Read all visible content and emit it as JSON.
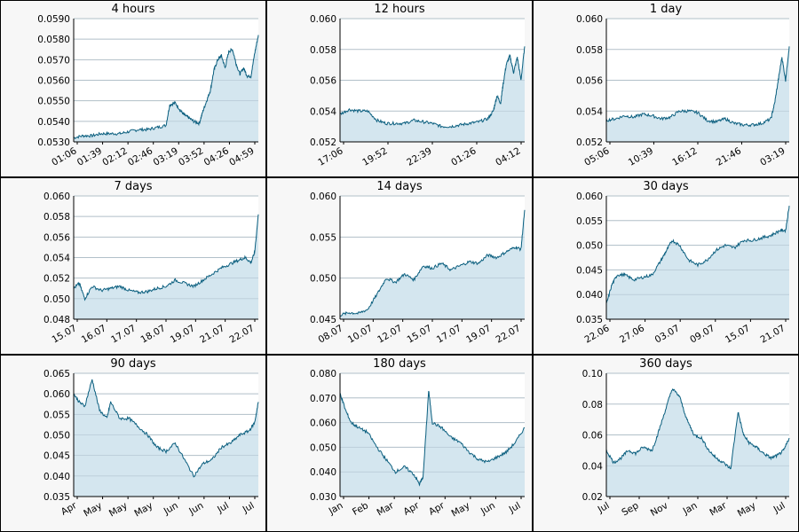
{
  "chart_data": [
    {
      "type": "area",
      "title": "4 hours",
      "ylim": [
        0.053,
        0.059
      ],
      "yticks": [
        "0.0530",
        "0.0540",
        "0.0550",
        "0.0560",
        "0.0570",
        "0.0580",
        "0.0590"
      ],
      "xticks": [
        "01:06",
        "01:39",
        "02:12",
        "02:46",
        "03:19",
        "03:52",
        "04:26",
        "04:59"
      ],
      "x": [
        0,
        0.05,
        0.1,
        0.15,
        0.2,
        0.25,
        0.3,
        0.35,
        0.4,
        0.45,
        0.5,
        0.52,
        0.55,
        0.58,
        0.6,
        0.62,
        0.65,
        0.68,
        0.7,
        0.72,
        0.74,
        0.76,
        0.78,
        0.8,
        0.82,
        0.84,
        0.86,
        0.88,
        0.9,
        0.92,
        0.94,
        0.96,
        0.98,
        1.0
      ],
      "y": [
        0.0532,
        0.0533,
        0.0533,
        0.0534,
        0.0534,
        0.0534,
        0.0535,
        0.0536,
        0.0536,
        0.0537,
        0.0538,
        0.0548,
        0.0549,
        0.0545,
        0.0543,
        0.0542,
        0.054,
        0.0539,
        0.0545,
        0.055,
        0.0555,
        0.0565,
        0.057,
        0.0572,
        0.0566,
        0.0574,
        0.0575,
        0.0568,
        0.0563,
        0.0566,
        0.0562,
        0.0562,
        0.0573,
        0.0582
      ],
      "grid": true
    },
    {
      "type": "area",
      "title": "12 hours",
      "ylim": [
        0.052,
        0.06
      ],
      "yticks": [
        "0.052",
        "0.054",
        "0.056",
        "0.058",
        "0.060"
      ],
      "xticks": [
        "17:06",
        "19:52",
        "22:39",
        "01:26",
        "04:12"
      ],
      "x": [
        0,
        0.05,
        0.1,
        0.15,
        0.2,
        0.25,
        0.3,
        0.35,
        0.4,
        0.45,
        0.5,
        0.55,
        0.6,
        0.65,
        0.7,
        0.75,
        0.8,
        0.83,
        0.85,
        0.87,
        0.88,
        0.9,
        0.92,
        0.94,
        0.96,
        0.98,
        1.0
      ],
      "y": [
        0.0538,
        0.0541,
        0.054,
        0.054,
        0.0534,
        0.0532,
        0.0532,
        0.0532,
        0.0534,
        0.0533,
        0.0532,
        0.053,
        0.053,
        0.0531,
        0.0532,
        0.0533,
        0.0535,
        0.054,
        0.055,
        0.0545,
        0.0555,
        0.057,
        0.0576,
        0.0565,
        0.0575,
        0.056,
        0.0582
      ],
      "grid": true
    },
    {
      "type": "area",
      "title": "1 day",
      "ylim": [
        0.052,
        0.06
      ],
      "yticks": [
        "0.052",
        "0.054",
        "0.056",
        "0.058",
        "0.060"
      ],
      "xticks": [
        "05:06",
        "10:39",
        "16:12",
        "21:46",
        "03:19"
      ],
      "x": [
        0,
        0.05,
        0.1,
        0.15,
        0.2,
        0.25,
        0.3,
        0.35,
        0.4,
        0.45,
        0.5,
        0.55,
        0.6,
        0.65,
        0.7,
        0.75,
        0.8,
        0.85,
        0.9,
        0.92,
        0.94,
        0.96,
        0.98,
        1.0
      ],
      "y": [
        0.0534,
        0.0535,
        0.0537,
        0.0536,
        0.0538,
        0.0537,
        0.0535,
        0.0536,
        0.054,
        0.054,
        0.0539,
        0.0534,
        0.0533,
        0.0535,
        0.0532,
        0.0531,
        0.0531,
        0.0532,
        0.0535,
        0.0545,
        0.056,
        0.0575,
        0.056,
        0.0582
      ],
      "grid": true
    },
    {
      "type": "area",
      "title": "7 days",
      "ylim": [
        0.048,
        0.06
      ],
      "yticks": [
        "0.048",
        "0.050",
        "0.052",
        "0.054",
        "0.056",
        "0.058",
        "0.060"
      ],
      "xticks": [
        "15.07",
        "16.07",
        "17.07",
        "18.07",
        "19.07",
        "21.07",
        "22.07"
      ],
      "x": [
        0,
        0.03,
        0.06,
        0.1,
        0.15,
        0.2,
        0.25,
        0.3,
        0.35,
        0.4,
        0.45,
        0.5,
        0.55,
        0.6,
        0.65,
        0.7,
        0.75,
        0.8,
        0.85,
        0.9,
        0.93,
        0.96,
        0.98,
        1.0
      ],
      "y": [
        0.051,
        0.0515,
        0.05,
        0.0512,
        0.0508,
        0.051,
        0.0512,
        0.0508,
        0.0506,
        0.0507,
        0.051,
        0.0512,
        0.0518,
        0.0515,
        0.0512,
        0.0518,
        0.0524,
        0.053,
        0.0534,
        0.0538,
        0.054,
        0.0535,
        0.0545,
        0.0582
      ],
      "grid": true
    },
    {
      "type": "area",
      "title": "14 days",
      "ylim": [
        0.045,
        0.06
      ],
      "yticks": [
        "0.045",
        "0.050",
        "0.055",
        "0.060"
      ],
      "xticks": [
        "08.07",
        "10.07",
        "12.07",
        "15.07",
        "17.07",
        "19.07",
        "22.07"
      ],
      "x": [
        0,
        0.05,
        0.1,
        0.15,
        0.2,
        0.25,
        0.3,
        0.35,
        0.4,
        0.45,
        0.5,
        0.55,
        0.6,
        0.65,
        0.7,
        0.75,
        0.8,
        0.85,
        0.9,
        0.95,
        0.98,
        1.0
      ],
      "y": [
        0.0455,
        0.0458,
        0.0457,
        0.0462,
        0.048,
        0.05,
        0.0495,
        0.0505,
        0.0498,
        0.0515,
        0.0512,
        0.0518,
        0.051,
        0.0515,
        0.052,
        0.0518,
        0.0528,
        0.0525,
        0.0532,
        0.0538,
        0.0535,
        0.0583
      ],
      "grid": true
    },
    {
      "type": "area",
      "title": "30 days",
      "ylim": [
        0.035,
        0.06
      ],
      "yticks": [
        "0.035",
        "0.040",
        "0.045",
        "0.050",
        "0.055",
        "0.060"
      ],
      "xticks": [
        "22.06",
        "27.06",
        "03.07",
        "09.07",
        "15.07",
        "21.07"
      ],
      "x": [
        0,
        0.03,
        0.06,
        0.1,
        0.15,
        0.2,
        0.25,
        0.3,
        0.33,
        0.36,
        0.4,
        0.45,
        0.5,
        0.55,
        0.6,
        0.65,
        0.7,
        0.75,
        0.8,
        0.85,
        0.9,
        0.95,
        0.98,
        1.0
      ],
      "y": [
        0.038,
        0.042,
        0.044,
        0.044,
        0.043,
        0.0435,
        0.044,
        0.047,
        0.049,
        0.051,
        0.05,
        0.047,
        0.046,
        0.047,
        0.049,
        0.05,
        0.0495,
        0.051,
        0.051,
        0.0515,
        0.052,
        0.053,
        0.053,
        0.058
      ],
      "grid": true
    },
    {
      "type": "area",
      "title": "90 days",
      "ylim": [
        0.035,
        0.065
      ],
      "yticks": [
        "0.035",
        "0.040",
        "0.045",
        "0.050",
        "0.055",
        "0.060",
        "0.065"
      ],
      "xticks": [
        "Apr",
        "May",
        "May",
        "May",
        "Jun",
        "Jun",
        "Jul",
        "Jul"
      ],
      "x": [
        0,
        0.03,
        0.06,
        0.1,
        0.14,
        0.18,
        0.2,
        0.25,
        0.3,
        0.35,
        0.4,
        0.45,
        0.5,
        0.55,
        0.6,
        0.65,
        0.7,
        0.75,
        0.8,
        0.85,
        0.9,
        0.95,
        0.98,
        1.0
      ],
      "y": [
        0.06,
        0.058,
        0.057,
        0.0635,
        0.056,
        0.054,
        0.058,
        0.054,
        0.054,
        0.052,
        0.05,
        0.047,
        0.046,
        0.048,
        0.044,
        0.04,
        0.043,
        0.044,
        0.047,
        0.048,
        0.05,
        0.051,
        0.053,
        0.058
      ],
      "grid": true
    },
    {
      "type": "area",
      "title": "180 days",
      "ylim": [
        0.03,
        0.08
      ],
      "yticks": [
        "0.030",
        "0.040",
        "0.050",
        "0.060",
        "0.070",
        "0.080"
      ],
      "xticks": [
        "Jan",
        "Feb",
        "Mar",
        "Apr",
        "Apr",
        "May",
        "Jun",
        "Jul"
      ],
      "x": [
        0,
        0.03,
        0.06,
        0.1,
        0.15,
        0.2,
        0.25,
        0.3,
        0.35,
        0.4,
        0.43,
        0.45,
        0.48,
        0.5,
        0.55,
        0.6,
        0.65,
        0.7,
        0.75,
        0.8,
        0.85,
        0.9,
        0.95,
        1.0
      ],
      "y": [
        0.072,
        0.065,
        0.06,
        0.058,
        0.056,
        0.05,
        0.045,
        0.04,
        0.042,
        0.039,
        0.035,
        0.038,
        0.073,
        0.06,
        0.058,
        0.054,
        0.052,
        0.048,
        0.045,
        0.044,
        0.046,
        0.048,
        0.052,
        0.058
      ],
      "grid": true
    },
    {
      "type": "area",
      "title": "360 days",
      "ylim": [
        0.02,
        0.1
      ],
      "yticks": [
        "0.02",
        "0.04",
        "0.06",
        "0.08",
        "0.10"
      ],
      "xticks": [
        "Jul",
        "Sep",
        "Nov",
        "Jan",
        "Mar",
        "May",
        "Jul"
      ],
      "x": [
        0,
        0.04,
        0.08,
        0.12,
        0.16,
        0.2,
        0.25,
        0.28,
        0.32,
        0.36,
        0.4,
        0.44,
        0.48,
        0.52,
        0.56,
        0.6,
        0.64,
        0.68,
        0.72,
        0.75,
        0.78,
        0.82,
        0.86,
        0.9,
        0.94,
        0.97,
        1.0
      ],
      "y": [
        0.05,
        0.042,
        0.045,
        0.05,
        0.048,
        0.052,
        0.05,
        0.06,
        0.075,
        0.09,
        0.085,
        0.07,
        0.06,
        0.058,
        0.05,
        0.045,
        0.042,
        0.038,
        0.075,
        0.06,
        0.055,
        0.052,
        0.048,
        0.045,
        0.047,
        0.05,
        0.058
      ],
      "grid": true
    }
  ]
}
